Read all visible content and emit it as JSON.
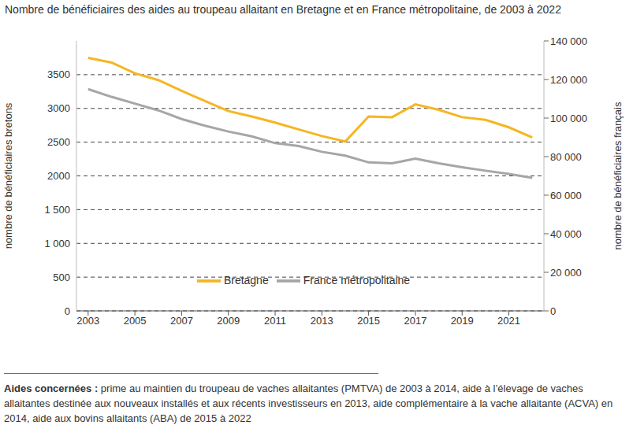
{
  "chart_data": {
    "type": "line",
    "title": "Nombre de bénéficiaires des aides au troupeau allaitant en Bretagne et en France métropolitaine, de 2003 à 2022",
    "x": [
      2003,
      2004,
      2005,
      2006,
      2007,
      2008,
      2009,
      2010,
      2011,
      2012,
      2013,
      2014,
      2015,
      2016,
      2017,
      2018,
      2019,
      2020,
      2021,
      2022
    ],
    "xlim": [
      2002.5,
      2022.5
    ],
    "xticks": [
      2003,
      2005,
      2007,
      2009,
      2011,
      2013,
      2015,
      2017,
      2019,
      2021
    ],
    "ylabel": "nombre de bénéficiaires bretons",
    "ylim": [
      0,
      4000
    ],
    "yticks": [
      0,
      500,
      1000,
      1500,
      2000,
      2500,
      3000,
      3500,
      {
        "value": 1000,
        "label": "1 000"
      },
      {
        "value": 1500,
        "label": "1 500"
      }
    ],
    "y2label": "nombre de bénéficiaires français",
    "y2lim": [
      0,
      140000
    ],
    "y2ticks": [
      0,
      {
        "value": 20000,
        "label": "20 000"
      },
      {
        "value": 40000,
        "label": "40 000"
      },
      {
        "value": 60000,
        "label": "60 000"
      },
      {
        "value": 80000,
        "label": "80 000"
      },
      {
        "value": 100000,
        "label": "100 000"
      },
      {
        "value": 120000,
        "label": "120 000"
      },
      {
        "value": 140000,
        "label": "140 000"
      }
    ],
    "grid": true,
    "legend": "center",
    "series": [
      {
        "name": "Bretagne",
        "color": "#F5B622",
        "values": [
          3750,
          3680,
          3520,
          3420,
          3260,
          3110,
          2960,
          2880,
          2790,
          2690,
          2590,
          2510,
          2880,
          2870,
          3060,
          2980,
          2870,
          2830,
          2720,
          2570
        ]
      },
      {
        "name": "France métropolitaine",
        "color": "#A6A6A6",
        "axis": "y2",
        "values": [
          115000,
          111000,
          107500,
          104000,
          99500,
          96000,
          93000,
          90500,
          87000,
          85500,
          82500,
          80500,
          77000,
          76500,
          79000,
          76500,
          74500,
          72700,
          71000,
          69000
        ]
      }
    ],
    "note": {
      "label": "Aides concernées :",
      "text": "prime au maintien du troupeau de vaches allaitantes (PMTVA) de 2003 à 2014, aide à l’élevage de vaches allaitantes destinée aux nouveaux installés et aux récents investisseurs en 2013, aide complémentaire à la vache allaitante (ACVA) en 2014, aide aux bovins allaitants (ABA) de 2015 à 2022"
    }
  }
}
